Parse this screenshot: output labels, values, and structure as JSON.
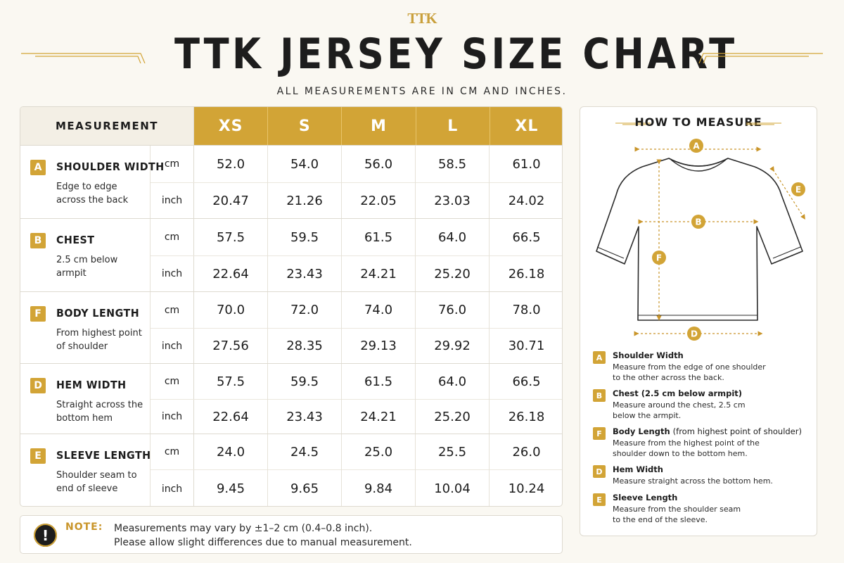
{
  "brand": {
    "logo": "TTK",
    "accent_color": "#d2a436"
  },
  "title": "TTK JERSEY SIZE CHART",
  "subtitle": "ALL MEASUREMENTS ARE IN CM AND INCHES.",
  "table": {
    "header_label": "MEASUREMENT",
    "sizes": [
      "XS",
      "S",
      "M",
      "L",
      "XL"
    ],
    "rows": [
      {
        "letter": "A",
        "name": "SHOULDER WIDTH",
        "desc": "Edge to edge across the back",
        "unit_cm": "cm",
        "unit_in": "inch",
        "cm": [
          "52.0",
          "54.0",
          "56.0",
          "58.5",
          "61.0"
        ],
        "inch": [
          "20.47",
          "21.26",
          "22.05",
          "23.03",
          "24.02"
        ]
      },
      {
        "letter": "B",
        "name": "CHEST",
        "desc": "2.5 cm below armpit",
        "unit_cm": "cm",
        "unit_in": "inch",
        "cm": [
          "57.5",
          "59.5",
          "61.5",
          "64.0",
          "66.5"
        ],
        "inch": [
          "22.64",
          "23.43",
          "24.21",
          "25.20",
          "26.18"
        ]
      },
      {
        "letter": "F",
        "name": "BODY LENGTH",
        "desc": "From highest point of shoulder",
        "unit_cm": "cm",
        "unit_in": "inch",
        "cm": [
          "70.0",
          "72.0",
          "74.0",
          "76.0",
          "78.0"
        ],
        "inch": [
          "27.56",
          "28.35",
          "29.13",
          "29.92",
          "30.71"
        ]
      },
      {
        "letter": "D",
        "name": "HEM WIDTH",
        "desc": "Straight across the bottom hem",
        "unit_cm": "cm",
        "unit_in": "inch",
        "cm": [
          "57.5",
          "59.5",
          "61.5",
          "64.0",
          "66.5"
        ],
        "inch": [
          "22.64",
          "23.43",
          "24.21",
          "25.20",
          "26.18"
        ]
      },
      {
        "letter": "E",
        "name": "SLEEVE LENGTH",
        "desc": "Shoulder seam to end of sleeve",
        "unit_cm": "cm",
        "unit_in": "inch",
        "cm": [
          "24.0",
          "24.5",
          "25.0",
          "25.5",
          "26.0"
        ],
        "inch": [
          "9.45",
          "9.65",
          "9.84",
          "10.04",
          "10.24"
        ]
      }
    ]
  },
  "note": {
    "icon": "exclamation-icon",
    "label": "NOTE:",
    "line1": "Measurements may vary by ±1–2 cm (0.4–0.8 inch).",
    "line2": "Please allow slight differences due to manual measurement."
  },
  "how_to_measure": {
    "title": "HOW TO MEASURE",
    "diagram_labels": {
      "a": "A",
      "b": "B",
      "d": "D",
      "e": "E",
      "f": "F"
    },
    "items": [
      {
        "letter": "A",
        "title": "Shoulder Width",
        "extra": "",
        "line1": "Measure from the edge of one shoulder",
        "line2": "to the other across the back."
      },
      {
        "letter": "B",
        "title": "Chest (2.5 cm below armpit)",
        "extra": "",
        "line1": "Measure around the chest, 2.5 cm",
        "line2": "below the armpit."
      },
      {
        "letter": "F",
        "title": "Body Length",
        "extra": "(from highest point of shoulder)",
        "line1": "Measure from the highest point of the",
        "line2": "shoulder down to the bottom hem."
      },
      {
        "letter": "D",
        "title": "Hem Width",
        "extra": "",
        "line1": "Measure straight across the bottom hem.",
        "line2": ""
      },
      {
        "letter": "E",
        "title": "Sleeve Length",
        "extra": "",
        "line1": "Measure from the shoulder seam",
        "line2": "to the end of the sleeve."
      }
    ]
  }
}
